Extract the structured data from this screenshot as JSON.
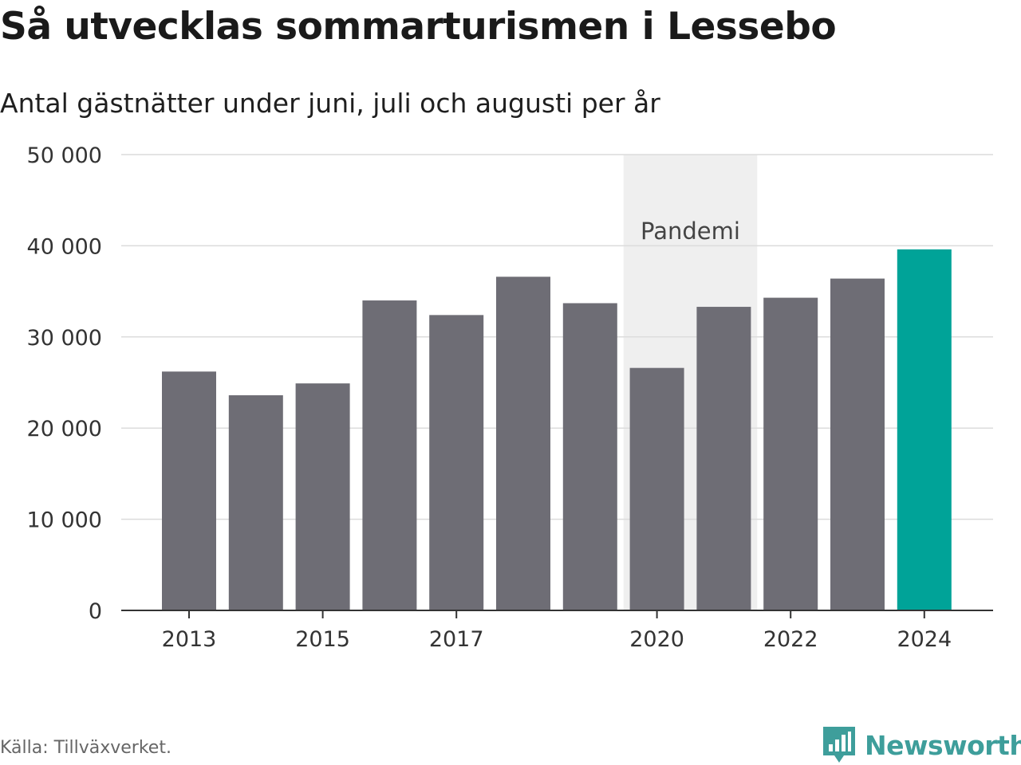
{
  "chart_data": {
    "type": "bar",
    "title": "Så utvecklas sommarturismen i Lessebo",
    "subtitle": "Antal gästnätter under juni, juli och augusti per år",
    "categories": [
      "2013",
      "2014",
      "2015",
      "2016",
      "2017",
      "2018",
      "2019",
      "2020",
      "2021",
      "2022",
      "2023",
      "2024"
    ],
    "values": [
      26200,
      23600,
      24900,
      34000,
      32400,
      36600,
      33700,
      26600,
      33300,
      34300,
      36400,
      39600
    ],
    "ylim": [
      0,
      50000
    ],
    "yticks": [
      0,
      10000,
      20000,
      30000,
      40000,
      50000
    ],
    "ytick_labels": [
      "0",
      "10 000",
      "20 000",
      "30 000",
      "40 000",
      "50 000"
    ],
    "xtick_labels": [
      "2013",
      "2015",
      "2017",
      "2020",
      "2022",
      "2024"
    ],
    "highlight_category": "2024",
    "bar_color": "#6e6d75",
    "highlight_color": "#00a398",
    "band": {
      "from": "2020",
      "to": "2021",
      "label": "Pandemi",
      "color": "#efefef"
    },
    "grid": true,
    "source": "Källa: Tillväxverket."
  },
  "brand": {
    "name": "Newsworthy",
    "color": "#3e9e9b",
    "icon": "newsworthy-logo-icon"
  }
}
